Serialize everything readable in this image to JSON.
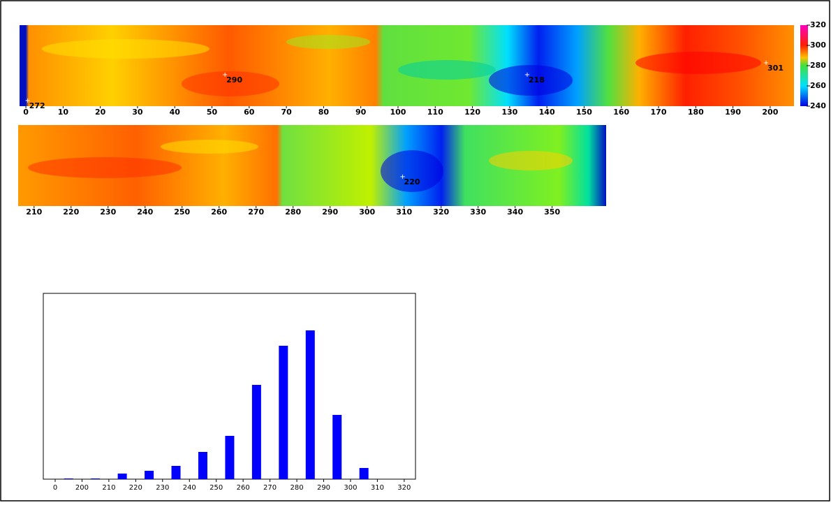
{
  "chart_data": [
    {
      "type": "strip-map",
      "colorbar": {
        "ylim": [
          240,
          320
        ],
        "yticks": [
          240,
          260,
          280,
          300,
          320
        ]
      },
      "strips": [
        {
          "xlim": [
            -1.7,
            206.4
          ],
          "xticks": [
            0,
            10,
            20,
            30,
            40,
            50,
            60,
            70,
            80,
            90,
            100,
            110,
            120,
            130,
            140,
            150,
            160,
            170,
            180,
            190,
            200
          ],
          "annotations": [
            {
              "x": 0.5,
              "text": "272"
            },
            {
              "x": 53.5,
              "text": "290"
            },
            {
              "x": 134.7,
              "text": "218"
            },
            {
              "x": 198.9,
              "text": "301"
            }
          ]
        },
        {
          "xlim": [
            205.7,
            364.6
          ],
          "xticks": [
            210,
            220,
            230,
            240,
            250,
            260,
            270,
            280,
            290,
            300,
            310,
            320,
            330,
            340,
            350
          ],
          "annotations": [
            {
              "x": 309.6,
              "text": "220"
            }
          ]
        }
      ]
    },
    {
      "type": "bar",
      "xticks": [
        0,
        200,
        210,
        220,
        230,
        240,
        250,
        260,
        270,
        280,
        290,
        300,
        310,
        320
      ],
      "values": [
        1,
        1,
        8,
        12,
        19,
        39,
        62,
        135,
        191,
        213,
        92,
        16,
        0
      ],
      "ylim": [
        0,
        266
      ],
      "color": "#0000ff"
    }
  ]
}
